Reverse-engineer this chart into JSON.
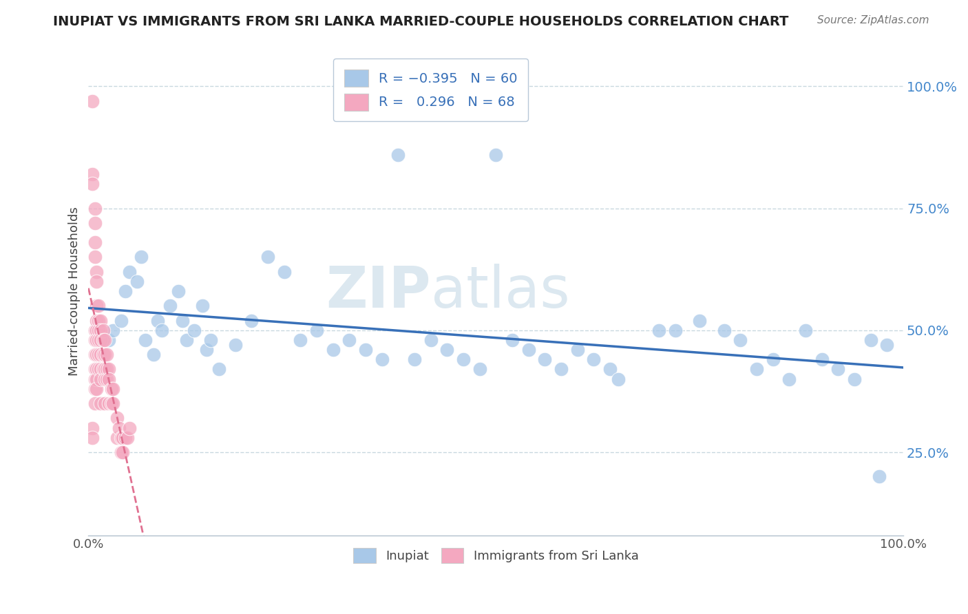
{
  "title": "INUPIAT VS IMMIGRANTS FROM SRI LANKA MARRIED-COUPLE HOUSEHOLDS CORRELATION CHART",
  "source": "Source: ZipAtlas.com",
  "ylabel": "Married-couple Households",
  "blue_R": -0.395,
  "blue_N": 60,
  "pink_R": 0.296,
  "pink_N": 68,
  "blue_color": "#a8c8e8",
  "pink_color": "#f4a8c0",
  "blue_line_color": "#3870b8",
  "pink_line_color": "#e07090",
  "watermark_color": "#dce8f0",
  "background_color": "#ffffff",
  "grid_color": "#c8d8e0",
  "ytick_labels": [
    "25.0%",
    "50.0%",
    "75.0%",
    "100.0%"
  ],
  "ytick_values": [
    0.25,
    0.5,
    0.75,
    1.0
  ],
  "xlim": [
    0.0,
    1.0
  ],
  "ylim": [
    0.08,
    1.08
  ],
  "blue_x": [
    0.025,
    0.03,
    0.04,
    0.045,
    0.05,
    0.06,
    0.065,
    0.07,
    0.08,
    0.085,
    0.09,
    0.1,
    0.11,
    0.115,
    0.12,
    0.13,
    0.14,
    0.145,
    0.15,
    0.16,
    0.18,
    0.2,
    0.22,
    0.24,
    0.26,
    0.28,
    0.3,
    0.32,
    0.34,
    0.36,
    0.38,
    0.4,
    0.42,
    0.44,
    0.46,
    0.48,
    0.5,
    0.52,
    0.54,
    0.56,
    0.58,
    0.6,
    0.62,
    0.64,
    0.65,
    0.7,
    0.72,
    0.75,
    0.78,
    0.8,
    0.82,
    0.84,
    0.86,
    0.88,
    0.9,
    0.92,
    0.94,
    0.96,
    0.97,
    0.98
  ],
  "blue_y": [
    0.48,
    0.5,
    0.52,
    0.58,
    0.62,
    0.6,
    0.65,
    0.48,
    0.45,
    0.52,
    0.5,
    0.55,
    0.58,
    0.52,
    0.48,
    0.5,
    0.55,
    0.46,
    0.48,
    0.42,
    0.47,
    0.52,
    0.65,
    0.62,
    0.48,
    0.5,
    0.46,
    0.48,
    0.46,
    0.44,
    0.86,
    0.44,
    0.48,
    0.46,
    0.44,
    0.42,
    0.86,
    0.48,
    0.46,
    0.44,
    0.42,
    0.46,
    0.44,
    0.42,
    0.4,
    0.5,
    0.5,
    0.52,
    0.5,
    0.48,
    0.42,
    0.44,
    0.4,
    0.5,
    0.44,
    0.42,
    0.4,
    0.48,
    0.2,
    0.47
  ],
  "pink_x": [
    0.005,
    0.005,
    0.005,
    0.005,
    0.005,
    0.008,
    0.008,
    0.008,
    0.008,
    0.008,
    0.008,
    0.008,
    0.008,
    0.008,
    0.008,
    0.008,
    0.01,
    0.01,
    0.01,
    0.01,
    0.01,
    0.01,
    0.01,
    0.01,
    0.01,
    0.01,
    0.012,
    0.012,
    0.012,
    0.012,
    0.012,
    0.012,
    0.015,
    0.015,
    0.015,
    0.015,
    0.015,
    0.015,
    0.015,
    0.018,
    0.018,
    0.018,
    0.018,
    0.02,
    0.02,
    0.02,
    0.02,
    0.02,
    0.022,
    0.022,
    0.022,
    0.025,
    0.025,
    0.025,
    0.028,
    0.028,
    0.03,
    0.03,
    0.035,
    0.035,
    0.038,
    0.04,
    0.04,
    0.042,
    0.042,
    0.045,
    0.048,
    0.05
  ],
  "pink_y": [
    0.97,
    0.82,
    0.8,
    0.3,
    0.28,
    0.75,
    0.72,
    0.68,
    0.65,
    0.5,
    0.48,
    0.45,
    0.42,
    0.4,
    0.38,
    0.35,
    0.62,
    0.6,
    0.55,
    0.52,
    0.5,
    0.48,
    0.45,
    0.42,
    0.4,
    0.38,
    0.55,
    0.52,
    0.5,
    0.48,
    0.45,
    0.42,
    0.52,
    0.5,
    0.48,
    0.45,
    0.42,
    0.4,
    0.35,
    0.5,
    0.48,
    0.45,
    0.42,
    0.48,
    0.45,
    0.42,
    0.4,
    0.35,
    0.45,
    0.42,
    0.4,
    0.42,
    0.4,
    0.35,
    0.38,
    0.35,
    0.38,
    0.35,
    0.32,
    0.28,
    0.3,
    0.28,
    0.25,
    0.28,
    0.25,
    0.28,
    0.28,
    0.3
  ]
}
